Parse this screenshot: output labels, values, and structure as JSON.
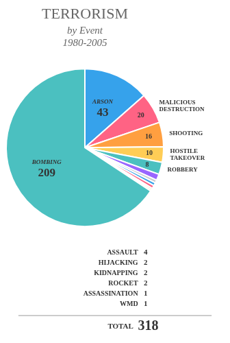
{
  "chart_data": {
    "type": "pie",
    "title": "TERRORISM",
    "subtitle": [
      "by Event",
      "1980-2005"
    ],
    "categories": [
      "ARSON",
      "MALICIOUS DESTRUCTION",
      "SHOOTING",
      "HOSTILE TAKEOVER",
      "ROBBERY",
      "ASSAULT",
      "HIJACKING",
      "KIDNAPPING",
      "ROCKET",
      "ASSASSINATION",
      "WMD",
      "BOMBING"
    ],
    "values": [
      43,
      20,
      16,
      10,
      8,
      4,
      2,
      2,
      2,
      1,
      1,
      209
    ],
    "data_labels": true,
    "annotations": [
      {
        "text": "TOTAL",
        "value": 318
      }
    ]
  }
}
